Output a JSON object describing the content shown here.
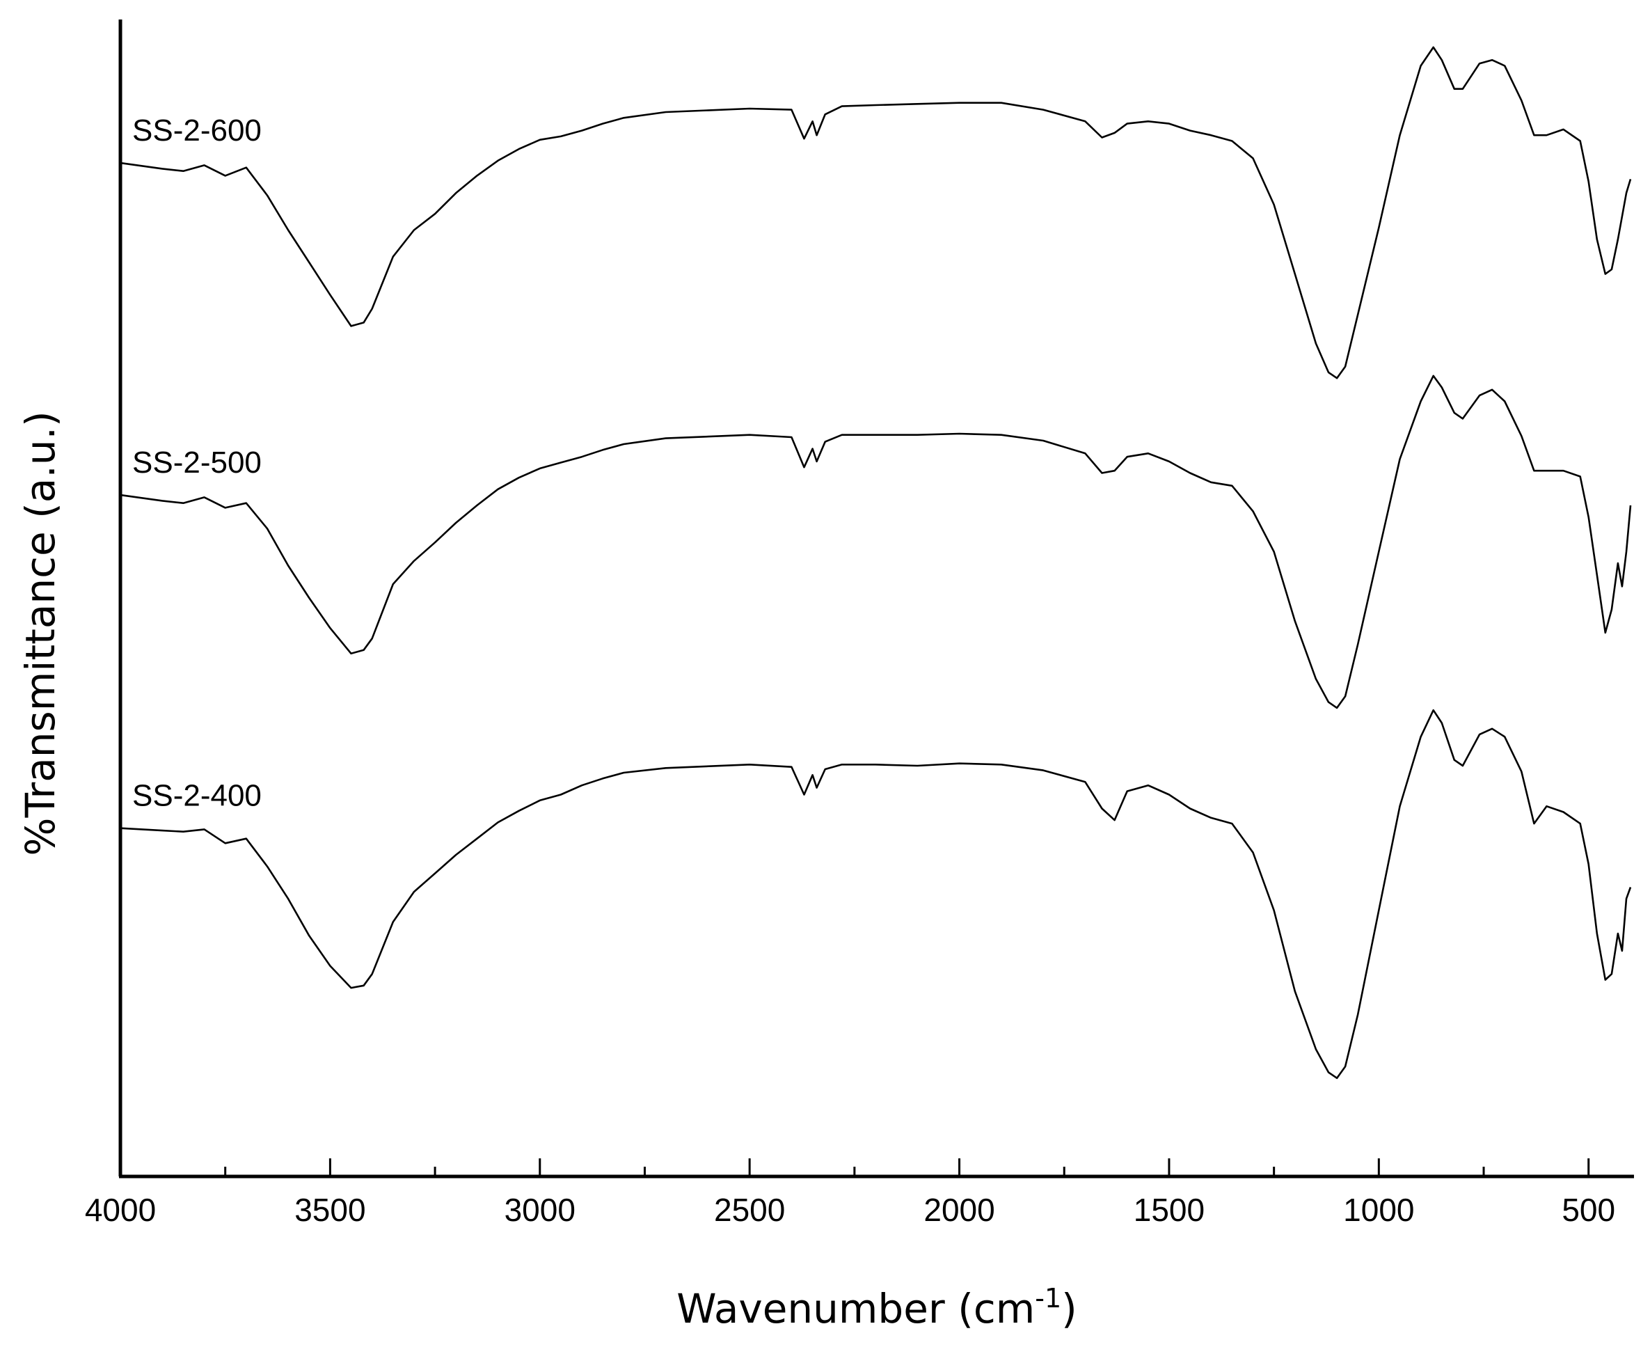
{
  "chart_data": {
    "type": "line",
    "xlabel": "Wavenumber (cm",
    "xlabel_sup": "-1",
    "xlabel_close": ")",
    "ylabel": "%Transmittance (a.u.)",
    "xlim": [
      4000,
      400
    ],
    "x_reversed": true,
    "ylim": [
      0,
      1
    ],
    "grid": false,
    "legend": "none",
    "y_tick_labels": false,
    "x_ticks": [
      {
        "value": 4000,
        "label": "4000"
      },
      {
        "value": 3500,
        "label": "3500"
      },
      {
        "value": 3000,
        "label": "3000"
      },
      {
        "value": 2500,
        "label": "2500"
      },
      {
        "value": 2000,
        "label": "2000"
      },
      {
        "value": 1500,
        "label": "1500"
      },
      {
        "value": 1000,
        "label": "1000"
      },
      {
        "value": 500,
        "label": "500"
      }
    ],
    "x_minor_ticks": [
      3750,
      3250,
      2750,
      2250,
      1750,
      1250,
      750
    ],
    "series": [
      {
        "name": "SS-2-600",
        "values": [
          [
            4000,
            0.876
          ],
          [
            3900,
            0.871
          ],
          [
            3850,
            0.869
          ],
          [
            3800,
            0.874
          ],
          [
            3750,
            0.865
          ],
          [
            3700,
            0.872
          ],
          [
            3650,
            0.848
          ],
          [
            3600,
            0.818
          ],
          [
            3550,
            0.79
          ],
          [
            3500,
            0.762
          ],
          [
            3450,
            0.735
          ],
          [
            3420,
            0.738
          ],
          [
            3400,
            0.75
          ],
          [
            3350,
            0.795
          ],
          [
            3300,
            0.818
          ],
          [
            3250,
            0.832
          ],
          [
            3200,
            0.85
          ],
          [
            3150,
            0.865
          ],
          [
            3100,
            0.878
          ],
          [
            3050,
            0.888
          ],
          [
            3000,
            0.896
          ],
          [
            2950,
            0.899
          ],
          [
            2900,
            0.904
          ],
          [
            2850,
            0.91
          ],
          [
            2800,
            0.915
          ],
          [
            2700,
            0.92
          ],
          [
            2500,
            0.923
          ],
          [
            2400,
            0.922
          ],
          [
            2370,
            0.897
          ],
          [
            2350,
            0.912
          ],
          [
            2340,
            0.9
          ],
          [
            2320,
            0.918
          ],
          [
            2280,
            0.925
          ],
          [
            2200,
            0.926
          ],
          [
            2100,
            0.927
          ],
          [
            2000,
            0.928
          ],
          [
            1900,
            0.928
          ],
          [
            1800,
            0.922
          ],
          [
            1700,
            0.912
          ],
          [
            1660,
            0.898
          ],
          [
            1630,
            0.902
          ],
          [
            1600,
            0.91
          ],
          [
            1550,
            0.912
          ],
          [
            1500,
            0.91
          ],
          [
            1450,
            0.904
          ],
          [
            1400,
            0.9
          ],
          [
            1350,
            0.895
          ],
          [
            1300,
            0.88
          ],
          [
            1250,
            0.84
          ],
          [
            1200,
            0.78
          ],
          [
            1150,
            0.72
          ],
          [
            1120,
            0.695
          ],
          [
            1100,
            0.69
          ],
          [
            1080,
            0.7
          ],
          [
            1050,
            0.745
          ],
          [
            1000,
            0.82
          ],
          [
            950,
            0.9
          ],
          [
            900,
            0.96
          ],
          [
            870,
            0.976
          ],
          [
            850,
            0.965
          ],
          [
            820,
            0.94
          ],
          [
            800,
            0.94
          ],
          [
            760,
            0.962
          ],
          [
            730,
            0.965
          ],
          [
            700,
            0.96
          ],
          [
            660,
            0.93
          ],
          [
            630,
            0.9
          ],
          [
            600,
            0.9
          ],
          [
            560,
            0.905
          ],
          [
            520,
            0.895
          ],
          [
            500,
            0.86
          ],
          [
            480,
            0.81
          ],
          [
            460,
            0.78
          ],
          [
            445,
            0.784
          ],
          [
            430,
            0.81
          ],
          [
            410,
            0.85
          ],
          [
            400,
            0.862
          ]
        ]
      },
      {
        "name": "SS-2-500",
        "values": [
          [
            4000,
            0.589
          ],
          [
            3900,
            0.584
          ],
          [
            3850,
            0.582
          ],
          [
            3800,
            0.587
          ],
          [
            3750,
            0.578
          ],
          [
            3700,
            0.582
          ],
          [
            3650,
            0.56
          ],
          [
            3600,
            0.528
          ],
          [
            3550,
            0.5
          ],
          [
            3500,
            0.474
          ],
          [
            3450,
            0.452
          ],
          [
            3420,
            0.455
          ],
          [
            3400,
            0.465
          ],
          [
            3350,
            0.512
          ],
          [
            3300,
            0.532
          ],
          [
            3250,
            0.548
          ],
          [
            3200,
            0.565
          ],
          [
            3150,
            0.58
          ],
          [
            3100,
            0.594
          ],
          [
            3050,
            0.604
          ],
          [
            3000,
            0.612
          ],
          [
            2950,
            0.617
          ],
          [
            2900,
            0.622
          ],
          [
            2850,
            0.628
          ],
          [
            2800,
            0.633
          ],
          [
            2700,
            0.638
          ],
          [
            2500,
            0.641
          ],
          [
            2400,
            0.639
          ],
          [
            2370,
            0.613
          ],
          [
            2350,
            0.629
          ],
          [
            2340,
            0.618
          ],
          [
            2320,
            0.635
          ],
          [
            2280,
            0.641
          ],
          [
            2200,
            0.641
          ],
          [
            2100,
            0.641
          ],
          [
            2000,
            0.642
          ],
          [
            1900,
            0.641
          ],
          [
            1800,
            0.636
          ],
          [
            1700,
            0.625
          ],
          [
            1660,
            0.608
          ],
          [
            1630,
            0.61
          ],
          [
            1600,
            0.622
          ],
          [
            1550,
            0.625
          ],
          [
            1500,
            0.618
          ],
          [
            1450,
            0.608
          ],
          [
            1400,
            0.6
          ],
          [
            1350,
            0.597
          ],
          [
            1300,
            0.575
          ],
          [
            1250,
            0.54
          ],
          [
            1200,
            0.48
          ],
          [
            1150,
            0.43
          ],
          [
            1120,
            0.41
          ],
          [
            1100,
            0.405
          ],
          [
            1080,
            0.415
          ],
          [
            1050,
            0.46
          ],
          [
            1000,
            0.54
          ],
          [
            950,
            0.62
          ],
          [
            900,
            0.67
          ],
          [
            870,
            0.692
          ],
          [
            850,
            0.682
          ],
          [
            820,
            0.66
          ],
          [
            800,
            0.655
          ],
          [
            760,
            0.675
          ],
          [
            730,
            0.68
          ],
          [
            700,
            0.67
          ],
          [
            660,
            0.64
          ],
          [
            630,
            0.61
          ],
          [
            600,
            0.61
          ],
          [
            560,
            0.61
          ],
          [
            520,
            0.605
          ],
          [
            500,
            0.57
          ],
          [
            480,
            0.52
          ],
          [
            460,
            0.47
          ],
          [
            445,
            0.49
          ],
          [
            430,
            0.53
          ],
          [
            420,
            0.51
          ],
          [
            410,
            0.54
          ],
          [
            400,
            0.58
          ]
        ]
      },
      {
        "name": "SS-2-400",
        "values": [
          [
            4000,
            0.301
          ],
          [
            3900,
            0.299
          ],
          [
            3850,
            0.298
          ],
          [
            3800,
            0.3
          ],
          [
            3750,
            0.288
          ],
          [
            3700,
            0.292
          ],
          [
            3650,
            0.268
          ],
          [
            3600,
            0.24
          ],
          [
            3550,
            0.208
          ],
          [
            3500,
            0.182
          ],
          [
            3450,
            0.163
          ],
          [
            3420,
            0.165
          ],
          [
            3400,
            0.175
          ],
          [
            3350,
            0.22
          ],
          [
            3300,
            0.246
          ],
          [
            3250,
            0.262
          ],
          [
            3200,
            0.278
          ],
          [
            3150,
            0.292
          ],
          [
            3100,
            0.306
          ],
          [
            3050,
            0.316
          ],
          [
            3000,
            0.325
          ],
          [
            2950,
            0.33
          ],
          [
            2900,
            0.338
          ],
          [
            2850,
            0.344
          ],
          [
            2800,
            0.349
          ],
          [
            2700,
            0.353
          ],
          [
            2500,
            0.356
          ],
          [
            2400,
            0.354
          ],
          [
            2370,
            0.33
          ],
          [
            2350,
            0.347
          ],
          [
            2340,
            0.336
          ],
          [
            2320,
            0.352
          ],
          [
            2280,
            0.356
          ],
          [
            2200,
            0.356
          ],
          [
            2100,
            0.355
          ],
          [
            2000,
            0.357
          ],
          [
            1900,
            0.356
          ],
          [
            1800,
            0.351
          ],
          [
            1700,
            0.341
          ],
          [
            1660,
            0.318
          ],
          [
            1630,
            0.308
          ],
          [
            1600,
            0.333
          ],
          [
            1550,
            0.338
          ],
          [
            1500,
            0.33
          ],
          [
            1450,
            0.318
          ],
          [
            1400,
            0.31
          ],
          [
            1350,
            0.305
          ],
          [
            1300,
            0.28
          ],
          [
            1250,
            0.23
          ],
          [
            1200,
            0.16
          ],
          [
            1150,
            0.11
          ],
          [
            1120,
            0.09
          ],
          [
            1100,
            0.085
          ],
          [
            1080,
            0.095
          ],
          [
            1050,
            0.14
          ],
          [
            1000,
            0.23
          ],
          [
            950,
            0.32
          ],
          [
            900,
            0.38
          ],
          [
            870,
            0.403
          ],
          [
            850,
            0.392
          ],
          [
            820,
            0.36
          ],
          [
            800,
            0.355
          ],
          [
            760,
            0.382
          ],
          [
            730,
            0.387
          ],
          [
            700,
            0.38
          ],
          [
            660,
            0.35
          ],
          [
            630,
            0.305
          ],
          [
            600,
            0.32
          ],
          [
            560,
            0.315
          ],
          [
            520,
            0.305
          ],
          [
            500,
            0.27
          ],
          [
            480,
            0.21
          ],
          [
            460,
            0.17
          ],
          [
            445,
            0.175
          ],
          [
            430,
            0.21
          ],
          [
            420,
            0.195
          ],
          [
            410,
            0.24
          ],
          [
            400,
            0.25
          ]
        ]
      }
    ]
  }
}
